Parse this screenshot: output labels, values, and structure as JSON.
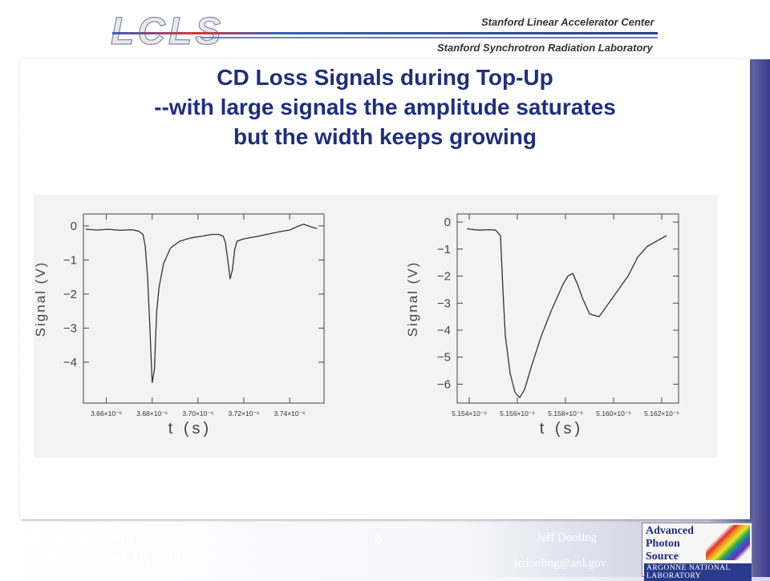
{
  "header": {
    "logo_text": "LCLS",
    "org1": "Stanford Linear Accelerator Center",
    "org2": "Stanford Synchrotron Radiation Laboratory"
  },
  "title_lines": [
    "CD Loss Signals during Top-Up",
    "--with large signals the amplitude saturates",
    "but the width keeps growing"
  ],
  "footer": {
    "left_line1": "BLM Diagnostic",
    "left_line2": "Thursday June 19, 2008",
    "page_number": "6",
    "author": "Jeff Dooling",
    "email": "jcdooling@anl.gov",
    "aps_logo_text": [
      "Advanced",
      "Photon",
      "Source"
    ],
    "aps_lab_text": "ARGONNE NATIONAL LABORATORY"
  },
  "colors": {
    "title": "#1f2f7a",
    "frame_dark": "#3a3a8c",
    "trace": "#333333"
  },
  "chart_data": [
    {
      "type": "line",
      "xlabel": "t (s)",
      "ylabel": "Signal (V)",
      "xlim": [
        3.65e-06,
        3.755e-06
      ],
      "ylim": [
        -5.2,
        0.35
      ],
      "x_ticks": [
        {
          "label": "3.66×10⁻⁶",
          "value": 3.66e-06
        },
        {
          "label": "3.68×10⁻⁶",
          "value": 3.68e-06
        },
        {
          "label": "3.70×10⁻⁶",
          "value": 3.7e-06
        },
        {
          "label": "3.72×10⁻⁶",
          "value": 3.72e-06
        },
        {
          "label": "3.74×10⁻⁶",
          "value": 3.74e-06
        }
      ],
      "y_ticks": [
        {
          "label": "0",
          "value": 0
        },
        {
          "label": "−1",
          "value": -1
        },
        {
          "label": "−2",
          "value": -2
        },
        {
          "label": "−3",
          "value": -3
        },
        {
          "label": "−4",
          "value": -4
        }
      ],
      "series": [
        {
          "x": [
            3.651e-06,
            3.656e-06,
            3.661e-06,
            3.666e-06,
            3.671e-06,
            3.674e-06,
            3.676e-06,
            3.677e-06,
            3.678e-06,
            3.679e-06,
            3.68e-06,
            3.681e-06,
            3.6815e-06,
            3.682e-06,
            3.683e-06,
            3.685e-06,
            3.688e-06,
            3.692e-06,
            3.697e-06,
            3.702e-06,
            3.706e-06,
            3.709e-06,
            3.711e-06,
            3.712e-06,
            3.713e-06,
            3.714e-06,
            3.715e-06,
            3.716e-06,
            3.717e-06,
            3.72e-06,
            3.725e-06,
            3.73e-06,
            3.735e-06,
            3.74e-06,
            3.744e-06,
            3.746e-06,
            3.749e-06,
            3.752e-06
          ],
          "y": [
            -0.1,
            -0.12,
            -0.1,
            -0.13,
            -0.11,
            -0.15,
            -0.25,
            -0.6,
            -1.5,
            -3.0,
            -4.6,
            -4.2,
            -3.3,
            -2.5,
            -1.8,
            -1.1,
            -0.65,
            -0.45,
            -0.35,
            -0.3,
            -0.25,
            -0.25,
            -0.3,
            -0.5,
            -1.0,
            -1.55,
            -1.3,
            -0.7,
            -0.45,
            -0.38,
            -0.32,
            -0.25,
            -0.18,
            -0.12,
            0.0,
            0.05,
            -0.02,
            -0.08
          ]
        }
      ]
    },
    {
      "type": "line",
      "xlabel": "t (s)",
      "ylabel": "Signal (V)",
      "xlim": [
        5.1535e-06,
        5.1627e-06
      ],
      "ylim": [
        -6.7,
        0.3
      ],
      "x_ticks": [
        {
          "label": "5.154×10⁻⁶",
          "value": 5.154e-06
        },
        {
          "label": "5.156×10⁻⁶",
          "value": 5.156e-06
        },
        {
          "label": "5.158×10⁻⁶",
          "value": 5.158e-06
        },
        {
          "label": "5.160×10⁻⁶",
          "value": 5.16e-06
        },
        {
          "label": "5.162×10⁻⁶",
          "value": 5.162e-06
        }
      ],
      "y_ticks": [
        {
          "label": "0",
          "value": 0
        },
        {
          "label": "−1",
          "value": -1
        },
        {
          "label": "−2",
          "value": -2
        },
        {
          "label": "−3",
          "value": -3
        },
        {
          "label": "−4",
          "value": -4
        },
        {
          "label": "−5",
          "value": -5
        },
        {
          "label": "−6",
          "value": -6
        }
      ],
      "series": [
        {
          "x": [
            5.1539e-06,
            5.1544e-06,
            5.1548e-06,
            5.1551e-06,
            5.1553e-06,
            5.1554e-06,
            5.1555e-06,
            5.1557e-06,
            5.1559e-06,
            5.1561e-06,
            5.1563e-06,
            5.1566e-06,
            5.157e-06,
            5.1574e-06,
            5.1577e-06,
            5.1579e-06,
            5.1581e-06,
            5.1583e-06,
            5.1585e-06,
            5.1587e-06,
            5.159e-06,
            5.1594e-06,
            5.1598e-06,
            5.1602e-06,
            5.1606e-06,
            5.161e-06,
            5.1614e-06,
            5.1618e-06,
            5.1622e-06
          ],
          "y": [
            -0.25,
            -0.3,
            -0.28,
            -0.3,
            -0.5,
            -2.5,
            -4.2,
            -5.6,
            -6.3,
            -6.5,
            -6.2,
            -5.3,
            -4.2,
            -3.3,
            -2.7,
            -2.3,
            -2.0,
            -1.9,
            -2.3,
            -2.8,
            -3.4,
            -3.5,
            -3.0,
            -2.5,
            -2.0,
            -1.3,
            -0.9,
            -0.7,
            -0.5
          ]
        }
      ]
    }
  ]
}
